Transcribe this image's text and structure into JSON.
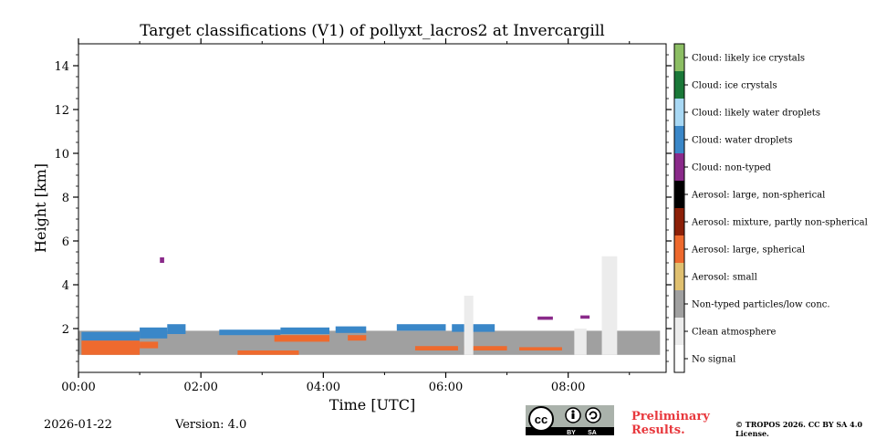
{
  "chart_data": {
    "type": "heatmap",
    "title": "Target classifications (V1) of pollyxt_lacros2 at Invercargill",
    "xlabel": "Time [UTC]",
    "ylabel": "Height [km]",
    "xlim": [
      0,
      9.6
    ],
    "ylim": [
      0,
      15
    ],
    "x_ticks": [
      0,
      2,
      4,
      6,
      8
    ],
    "x_tick_labels": [
      "00:00",
      "02:00",
      "04:00",
      "06:00",
      "08:00"
    ],
    "y_ticks": [
      2,
      4,
      6,
      8,
      10,
      12,
      14
    ],
    "y_tick_labels": [
      "2",
      "4",
      "6",
      "8",
      "10",
      "12",
      "14"
    ],
    "classes": [
      {
        "label": "Cloud: likely ice crystals",
        "color": "#8cbe64"
      },
      {
        "label": "Cloud: ice crystals",
        "color": "#1a7838"
      },
      {
        "label": "Cloud: likely water droplets",
        "color": "#a8d8f4"
      },
      {
        "label": "Cloud: water droplets",
        "color": "#3a87c8"
      },
      {
        "label": "Cloud: non-typed",
        "color": "#8a2a8a"
      },
      {
        "label": "Aerosol: large, non-spherical",
        "color": "#000000"
      },
      {
        "label": "Aerosol: mixture, partly non-spherical",
        "color": "#8c2008"
      },
      {
        "label": "Aerosol: large, spherical",
        "color": "#ee6a2e"
      },
      {
        "label": "Aerosol: small",
        "color": "#e0c070"
      },
      {
        "label": "Non-typed particles/low conc.",
        "color": "#a0a0a0"
      },
      {
        "label": "Clean atmosphere",
        "color": "#ececec"
      },
      {
        "label": "No signal",
        "color": "#ffffff"
      }
    ],
    "regions": [
      {
        "class": "Non-typed particles/low conc.",
        "x": [
          0.0,
          9.5
        ],
        "y": [
          0.8,
          1.9
        ]
      },
      {
        "class": "Cloud: water droplets",
        "x": [
          0.05,
          1.0
        ],
        "y": [
          1.45,
          1.85
        ]
      },
      {
        "class": "Cloud: water droplets",
        "x": [
          1.0,
          1.45
        ],
        "y": [
          1.55,
          2.05
        ]
      },
      {
        "class": "Cloud: water droplets",
        "x": [
          1.45,
          1.75
        ],
        "y": [
          1.75,
          2.2
        ]
      },
      {
        "class": "Cloud: water droplets",
        "x": [
          2.3,
          3.3
        ],
        "y": [
          1.7,
          1.95
        ]
      },
      {
        "class": "Cloud: water droplets",
        "x": [
          3.3,
          4.1
        ],
        "y": [
          1.75,
          2.05
        ]
      },
      {
        "class": "Cloud: water droplets",
        "x": [
          4.2,
          4.7
        ],
        "y": [
          1.8,
          2.1
        ]
      },
      {
        "class": "Cloud: water droplets",
        "x": [
          5.2,
          6.0
        ],
        "y": [
          1.9,
          2.2
        ]
      },
      {
        "class": "Cloud: water droplets",
        "x": [
          6.1,
          6.8
        ],
        "y": [
          1.85,
          2.2
        ]
      },
      {
        "class": "Aerosol: large, spherical",
        "x": [
          0.05,
          1.0
        ],
        "y": [
          0.8,
          1.45
        ]
      },
      {
        "class": "Aerosol: large, spherical",
        "x": [
          1.0,
          1.3
        ],
        "y": [
          1.1,
          1.4
        ]
      },
      {
        "class": "Aerosol: large, spherical",
        "x": [
          2.6,
          3.6
        ],
        "y": [
          0.8,
          1.0
        ]
      },
      {
        "class": "Aerosol: large, spherical",
        "x": [
          3.2,
          4.1
        ],
        "y": [
          1.4,
          1.7
        ]
      },
      {
        "class": "Aerosol: large, spherical",
        "x": [
          4.4,
          4.7
        ],
        "y": [
          1.45,
          1.7
        ]
      },
      {
        "class": "Aerosol: large, spherical",
        "x": [
          5.5,
          6.2
        ],
        "y": [
          1.0,
          1.2
        ]
      },
      {
        "class": "Aerosol: large, spherical",
        "x": [
          6.3,
          7.0
        ],
        "y": [
          1.0,
          1.2
        ]
      },
      {
        "class": "Aerosol: large, spherical",
        "x": [
          7.2,
          7.9
        ],
        "y": [
          1.0,
          1.15
        ]
      },
      {
        "class": "Cloud: non-typed",
        "x": [
          1.33,
          1.4
        ],
        "y": [
          5.0,
          5.25
        ]
      },
      {
        "class": "Cloud: non-typed",
        "x": [
          7.5,
          7.75
        ],
        "y": [
          2.4,
          2.55
        ]
      },
      {
        "class": "Cloud: non-typed",
        "x": [
          8.2,
          8.35
        ],
        "y": [
          2.45,
          2.6
        ]
      },
      {
        "class": "Clean atmosphere",
        "x": [
          8.55,
          8.8
        ],
        "y": [
          0.8,
          5.3
        ]
      },
      {
        "class": "Clean atmosphere",
        "x": [
          6.3,
          6.45
        ],
        "y": [
          0.8,
          3.5
        ]
      },
      {
        "class": "Clean atmosphere",
        "x": [
          8.1,
          8.3
        ],
        "y": [
          0.8,
          2.0
        ]
      }
    ]
  },
  "footer": {
    "date": "2026-01-22",
    "version": "Version: 4.0",
    "preliminary": "Preliminary Results.",
    "copyright": "© TROPOS 2026. CC BY SA 4.0 License.",
    "license_badge": {
      "cc": "cc",
      "by": "BY",
      "sa": "SA"
    }
  }
}
